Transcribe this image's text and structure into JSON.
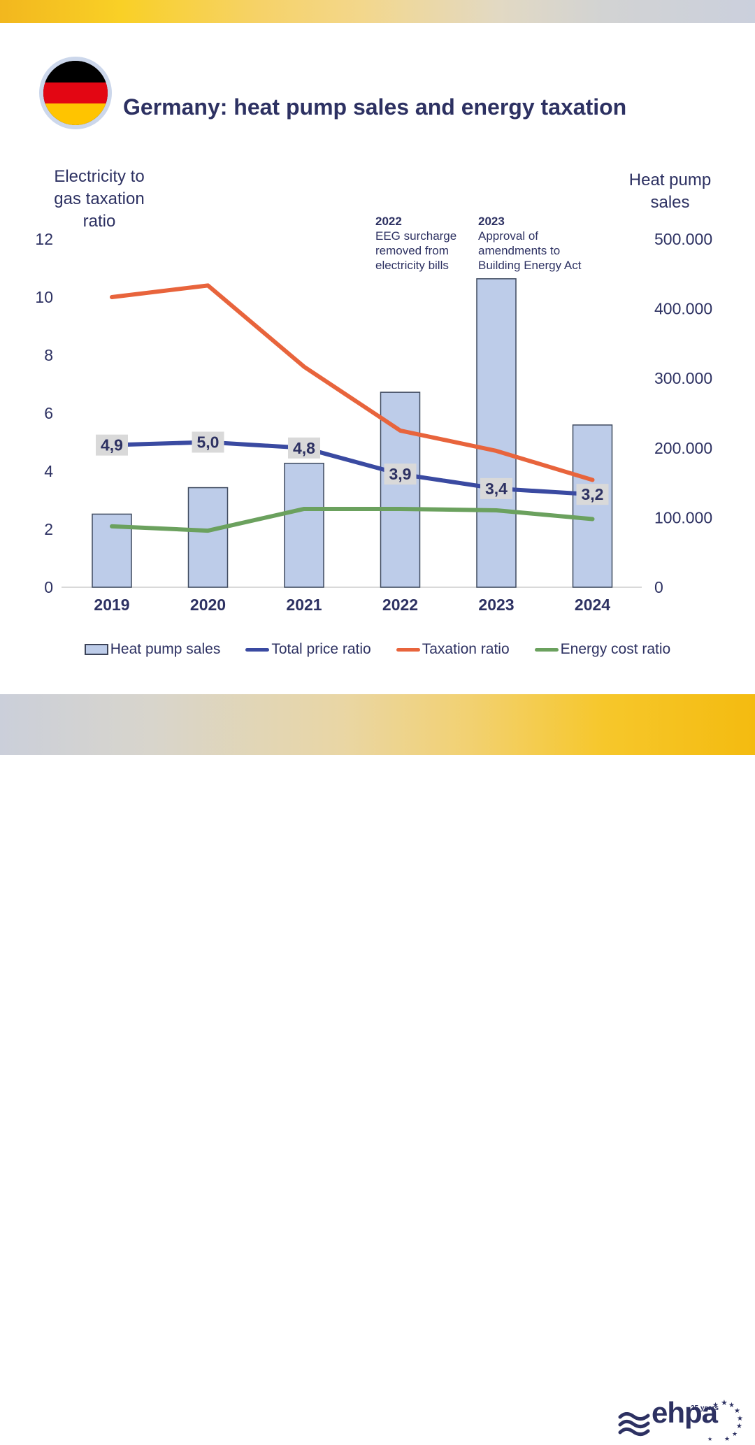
{
  "header": {
    "title": "Germany: heat pump sales and energy taxation",
    "flag": "germany-flag"
  },
  "annotations": [
    {
      "year": "2022",
      "text": "EEG surcharge removed from electricity bills"
    },
    {
      "year": "2023",
      "text": "Approval of amendments to Building Energy Act"
    }
  ],
  "legend": {
    "items": [
      {
        "label": "Heat pump sales",
        "type": "bar",
        "color": "#bdcce9"
      },
      {
        "label": "Total price ratio",
        "type": "line",
        "color": "#3a4aa1"
      },
      {
        "label": "Taxation ratio",
        "type": "line",
        "color": "#e8643c"
      },
      {
        "label": "Energy cost ratio",
        "type": "line",
        "color": "#6ba15e"
      }
    ]
  },
  "footer": {
    "brand": "ehpa",
    "anniversary": "25 years"
  },
  "colors": {
    "text_navy": "#2d3162",
    "label_box": "#d9d9d9",
    "axis_line": "#d9d9d9",
    "bar_fill": "#bdcce9",
    "bar_border": "#3f4a5f"
  },
  "chart_data": {
    "type": "combo-bar-line",
    "categories": [
      "2019",
      "2020",
      "2021",
      "2022",
      "2023",
      "2024"
    ],
    "bars": {
      "name": "Heat pump sales",
      "axis": "right",
      "color": "#bdcce9",
      "border_color": "#3f4a5f",
      "values": [
        105000,
        143000,
        178000,
        280000,
        443000,
        233000
      ]
    },
    "series": [
      {
        "name": "Total price ratio",
        "axis": "left",
        "color": "#3a4aa1",
        "values": [
          4.9,
          5.0,
          4.8,
          3.9,
          3.4,
          3.2
        ],
        "point_labels": [
          "4,9",
          "5,0",
          "4,8",
          "3,9",
          "3,4",
          "3,2"
        ]
      },
      {
        "name": "Taxation ratio",
        "axis": "left",
        "color": "#e8643c",
        "values": [
          10.0,
          10.4,
          7.6,
          5.4,
          4.7,
          3.7
        ]
      },
      {
        "name": "Energy cost ratio",
        "axis": "left",
        "color": "#6ba15e",
        "values": [
          2.1,
          1.95,
          2.7,
          2.7,
          2.65,
          2.35
        ]
      }
    ],
    "left_axis": {
      "title": "Electricity to gas taxation ratio",
      "ticks": [
        0,
        2,
        4,
        6,
        8,
        10,
        12
      ],
      "range": [
        0,
        12
      ]
    },
    "right_axis": {
      "title": "Heat pump sales",
      "tick_labels": [
        "0",
        "100.000",
        "200.000",
        "300.000",
        "400.000",
        "500.000"
      ],
      "tick_values": [
        0,
        100000,
        200000,
        300000,
        400000,
        500000
      ],
      "range": [
        0,
        500000
      ]
    },
    "grid": false,
    "legend_position": "bottom"
  }
}
